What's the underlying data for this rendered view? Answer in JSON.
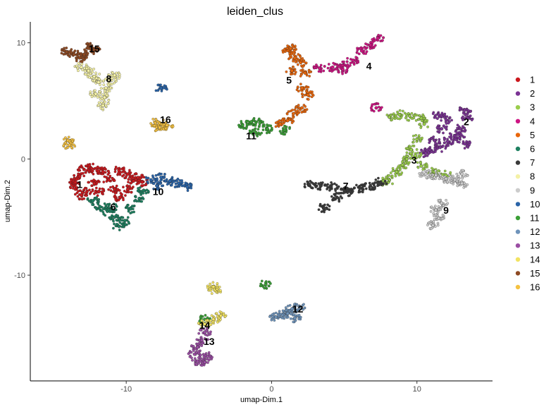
{
  "chart_data": {
    "type": "scatter",
    "title": "leiden_clus",
    "xlabel": "umap-Dim.1",
    "ylabel": "umap-Dim.2",
    "xlim": [
      -16.6,
      15.2
    ],
    "ylim": [
      -19.1,
      11.8
    ],
    "xticks": [
      -10,
      0,
      10
    ],
    "yticks": [
      -10,
      0,
      10
    ],
    "grid": false,
    "legend_position": "right",
    "series": [
      {
        "name": "1",
        "color": "#CB181D",
        "points": [
          [
            -13.6,
            -2.3
          ],
          [
            -13.2,
            -1.5
          ],
          [
            -12.9,
            -0.9
          ],
          [
            -12.4,
            -0.8
          ],
          [
            -12.0,
            -1.0
          ],
          [
            -12.7,
            -2.8
          ],
          [
            -13.1,
            -3.1
          ],
          [
            -13.5,
            -2.0
          ],
          [
            -11.6,
            -1.1
          ],
          [
            -11.2,
            -1.8
          ],
          [
            -10.8,
            -2.6
          ],
          [
            -10.4,
            -3.3
          ],
          [
            -9.9,
            -2.6
          ],
          [
            -9.5,
            -1.9
          ],
          [
            -9.9,
            -1.3
          ],
          [
            -10.5,
            -1.0
          ],
          [
            -9.2,
            -1.6
          ],
          [
            -8.9,
            -2.0
          ],
          [
            -12.2,
            -2.1
          ],
          [
            -11.9,
            -2.8
          ]
        ]
      },
      {
        "name": "2",
        "color": "#7B3294",
        "points": [
          [
            13.3,
            4.2
          ],
          [
            13.5,
            3.5
          ],
          [
            13.0,
            2.6
          ],
          [
            12.6,
            2.0
          ],
          [
            12.1,
            1.5
          ],
          [
            11.6,
            1.0
          ],
          [
            11.2,
            1.6
          ],
          [
            11.7,
            2.6
          ],
          [
            12.0,
            3.4
          ],
          [
            11.5,
            3.8
          ],
          [
            12.9,
            1.8
          ],
          [
            13.3,
            1.3
          ],
          [
            10.9,
            0.8
          ],
          [
            10.6,
            0.5
          ]
        ]
      },
      {
        "name": "3",
        "color": "#9ACD4C",
        "points": [
          [
            8.1,
            3.6
          ],
          [
            8.8,
            3.8
          ],
          [
            9.5,
            3.7
          ],
          [
            10.3,
            3.5
          ],
          [
            10.5,
            3.0
          ],
          [
            10.0,
            1.7
          ],
          [
            9.6,
            0.8
          ],
          [
            9.3,
            0.0
          ],
          [
            9.0,
            -0.5
          ],
          [
            8.6,
            -1.1
          ],
          [
            8.1,
            -1.8
          ],
          [
            7.7,
            -1.9
          ],
          [
            10.3,
            -0.6
          ],
          [
            11.2,
            -1.1
          ],
          [
            12.0,
            -1.4
          ],
          [
            9.9,
            0.3
          ]
        ]
      },
      {
        "name": "4",
        "color": "#CE1583",
        "points": [
          [
            3.3,
            7.8
          ],
          [
            4.2,
            7.9
          ],
          [
            5.0,
            8.1
          ],
          [
            5.6,
            8.5
          ],
          [
            6.2,
            9.3
          ],
          [
            6.8,
            9.8
          ],
          [
            7.3,
            10.4
          ],
          [
            4.9,
            7.7
          ],
          [
            7.2,
            4.4
          ]
        ]
      },
      {
        "name": "5",
        "color": "#E8660B",
        "points": [
          [
            1.2,
            9.3
          ],
          [
            1.6,
            8.7
          ],
          [
            2.0,
            8.3
          ],
          [
            1.4,
            7.6
          ],
          [
            2.3,
            7.4
          ],
          [
            2.1,
            6.1
          ],
          [
            2.5,
            5.5
          ],
          [
            2.1,
            4.4
          ],
          [
            1.5,
            3.9
          ],
          [
            1.1,
            3.3
          ],
          [
            0.6,
            3.0
          ],
          [
            1.3,
            9.5
          ]
        ]
      },
      {
        "name": "6",
        "color": "#1E8060",
        "points": [
          [
            -12.3,
            -3.6
          ],
          [
            -11.8,
            -4.1
          ],
          [
            -11.3,
            -4.5
          ],
          [
            -10.8,
            -5.0
          ],
          [
            -10.5,
            -5.8
          ],
          [
            -10.1,
            -5.3
          ],
          [
            -9.7,
            -4.3
          ],
          [
            -9.1,
            -3.4
          ],
          [
            -8.8,
            -2.7
          ],
          [
            -11.0,
            -4.2
          ]
        ]
      },
      {
        "name": "7",
        "color": "#3A3A3A",
        "points": [
          [
            2.6,
            -2.2
          ],
          [
            3.4,
            -2.3
          ],
          [
            4.1,
            -2.4
          ],
          [
            4.8,
            -2.6
          ],
          [
            5.4,
            -2.8
          ],
          [
            6.1,
            -2.5
          ],
          [
            6.8,
            -2.3
          ],
          [
            7.5,
            -2.0
          ],
          [
            4.5,
            -3.3
          ],
          [
            3.6,
            -4.2
          ]
        ]
      },
      {
        "name": "8",
        "color": "#F4F1A6",
        "points": [
          [
            -13.1,
            7.9
          ],
          [
            -12.6,
            7.6
          ],
          [
            -12.2,
            7.1
          ],
          [
            -11.9,
            6.6
          ],
          [
            -11.4,
            6.1
          ],
          [
            -11.0,
            6.8
          ],
          [
            -10.8,
            7.2
          ],
          [
            -11.5,
            5.3
          ],
          [
            -11.6,
            4.6
          ],
          [
            -12.1,
            5.6
          ]
        ]
      },
      {
        "name": "9",
        "color": "#CCCCCC",
        "points": [
          [
            10.6,
            -1.3
          ],
          [
            11.3,
            -1.4
          ],
          [
            12.0,
            -1.7
          ],
          [
            12.6,
            -1.8
          ],
          [
            13.1,
            -1.3
          ],
          [
            13.1,
            -2.1
          ],
          [
            11.7,
            -3.8
          ],
          [
            11.3,
            -4.4
          ],
          [
            11.5,
            -5.1
          ],
          [
            11.1,
            -5.7
          ]
        ]
      },
      {
        "name": "10",
        "color": "#2A64A8",
        "points": [
          [
            -8.3,
            -1.8
          ],
          [
            -7.6,
            -1.6
          ],
          [
            -7.0,
            -1.9
          ],
          [
            -6.4,
            -2.1
          ],
          [
            -5.8,
            -2.4
          ],
          [
            -7.9,
            -2.3
          ],
          [
            -7.6,
            6.1
          ]
        ]
      },
      {
        "name": "11",
        "color": "#3A9F36",
        "points": [
          [
            -2.0,
            2.9
          ],
          [
            -1.4,
            3.2
          ],
          [
            -0.8,
            3.1
          ],
          [
            -0.3,
            2.6
          ],
          [
            -1.1,
            2.3
          ],
          [
            0.9,
            2.5
          ],
          [
            -0.4,
            -10.8
          ],
          [
            -4.6,
            -13.8
          ]
        ]
      },
      {
        "name": "12",
        "color": "#6E93BA",
        "points": [
          [
            0.3,
            -13.6
          ],
          [
            0.8,
            -13.4
          ],
          [
            1.1,
            -13.3
          ],
          [
            1.6,
            -13.7
          ],
          [
            1.9,
            -12.7
          ],
          [
            1.4,
            -12.9
          ]
        ]
      },
      {
        "name": "13",
        "color": "#9A4EA3",
        "points": [
          [
            -4.6,
            -14.9
          ],
          [
            -4.8,
            -15.6
          ],
          [
            -5.1,
            -16.2
          ],
          [
            -5.3,
            -16.8
          ],
          [
            -5.1,
            -17.4
          ],
          [
            -4.6,
            -17.5
          ],
          [
            -4.4,
            -17.0
          ]
        ]
      },
      {
        "name": "14",
        "color": "#F2E362",
        "points": [
          [
            -4.6,
            -14.2
          ],
          [
            -4.0,
            -13.8
          ],
          [
            -3.5,
            -13.5
          ],
          [
            -3.9,
            -11.3
          ],
          [
            -4.0,
            -11.0
          ]
        ]
      },
      {
        "name": "15",
        "color": "#8E4A23",
        "points": [
          [
            -14.1,
            9.2
          ],
          [
            -13.6,
            9.0
          ],
          [
            -13.2,
            8.7
          ],
          [
            -12.9,
            9.0
          ],
          [
            -12.5,
            9.6
          ],
          [
            -12.2,
            9.4
          ]
        ]
      },
      {
        "name": "16",
        "color": "#F5C242",
        "points": [
          [
            -8.0,
            3.1
          ],
          [
            -7.6,
            3.0
          ],
          [
            -7.2,
            2.9
          ],
          [
            -7.7,
            2.7
          ],
          [
            -14.0,
            1.6
          ],
          [
            -13.9,
            1.2
          ]
        ]
      }
    ],
    "cluster_labels": [
      {
        "text": "1",
        "x": -13.2,
        "y": -2.2
      },
      {
        "text": "2",
        "x": 13.4,
        "y": 3.2
      },
      {
        "text": "3",
        "x": 9.8,
        "y": -0.1
      },
      {
        "text": "4",
        "x": 6.7,
        "y": 8.0
      },
      {
        "text": "5",
        "x": 1.2,
        "y": 6.8
      },
      {
        "text": "6",
        "x": -10.9,
        "y": -4.1
      },
      {
        "text": "7",
        "x": 5.1,
        "y": -2.3
      },
      {
        "text": "8",
        "x": -11.2,
        "y": 6.9
      },
      {
        "text": "9",
        "x": 12.0,
        "y": -4.4
      },
      {
        "text": "10",
        "x": -7.8,
        "y": -2.8
      },
      {
        "text": "11",
        "x": -1.4,
        "y": 2.0
      },
      {
        "text": "12",
        "x": 1.8,
        "y": -12.9
      },
      {
        "text": "13",
        "x": -4.3,
        "y": -15.7
      },
      {
        "text": "14",
        "x": -4.6,
        "y": -14.3
      },
      {
        "text": "15",
        "x": -12.2,
        "y": 9.5
      },
      {
        "text": "16",
        "x": -7.3,
        "y": 3.4
      }
    ]
  }
}
